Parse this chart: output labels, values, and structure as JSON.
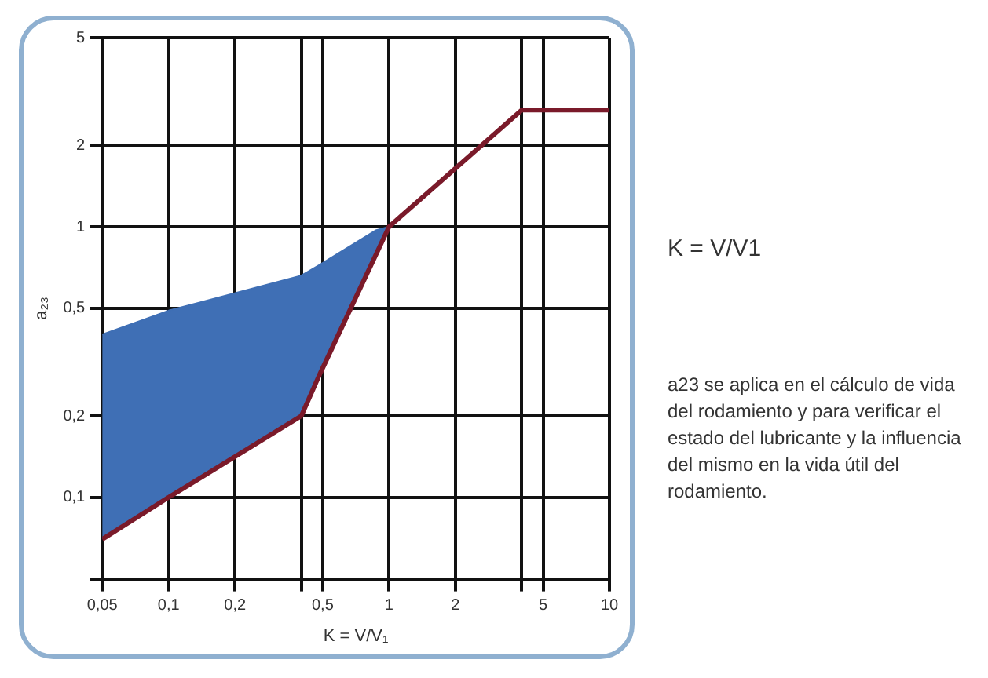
{
  "chart_data": {
    "type": "line",
    "xlabel": "K = V/V₁",
    "ylabel": "a₂₃",
    "log": "xy",
    "xlim": [
      0.05,
      10
    ],
    "ylim": [
      0.05,
      5
    ],
    "xticks": [
      {
        "value": 0.05,
        "label": "0,05"
      },
      {
        "value": 0.1,
        "label": "0,1"
      },
      {
        "value": 0.2,
        "label": "0,2"
      },
      {
        "value": 0.4,
        "label": null
      },
      {
        "value": 0.5,
        "label": "0,5"
      },
      1,
      2,
      {
        "value": 4,
        "label": null
      },
      5,
      10
    ],
    "yticks": [
      {
        "value": 0.05,
        "label": null
      },
      {
        "value": 0.1,
        "label": "0,1"
      },
      {
        "value": 0.2,
        "label": "0,2"
      },
      {
        "value": 0.5,
        "label": "0,5"
      },
      1,
      2,
      5
    ],
    "grid": true,
    "marker": "none",
    "series": [
      {
        "type": "line",
        "color": "#7a1a2a",
        "x": [
          0.05,
          0.1,
          0.4,
          0.48,
          1,
          4,
          10
        ],
        "values": [
          0.07,
          0.1,
          0.2,
          0.28,
          1,
          2.7,
          2.7
        ]
      },
      {
        "type": "area",
        "color": "#3f6fb5",
        "x": [
          0.05,
          0.1,
          0.4,
          0.48,
          0.87,
          1
        ],
        "values": [
          0.4,
          0.49,
          0.66,
          0.72,
          0.97,
          1
        ]
      }
    ],
    "annotations": [
      "K = V/V1",
      "a23 se aplica en el cálculo de vida del rodamiento y para verificar el estado del lubricante y la influencia del mismo en la vida útil del rodamiento."
    ]
  }
}
